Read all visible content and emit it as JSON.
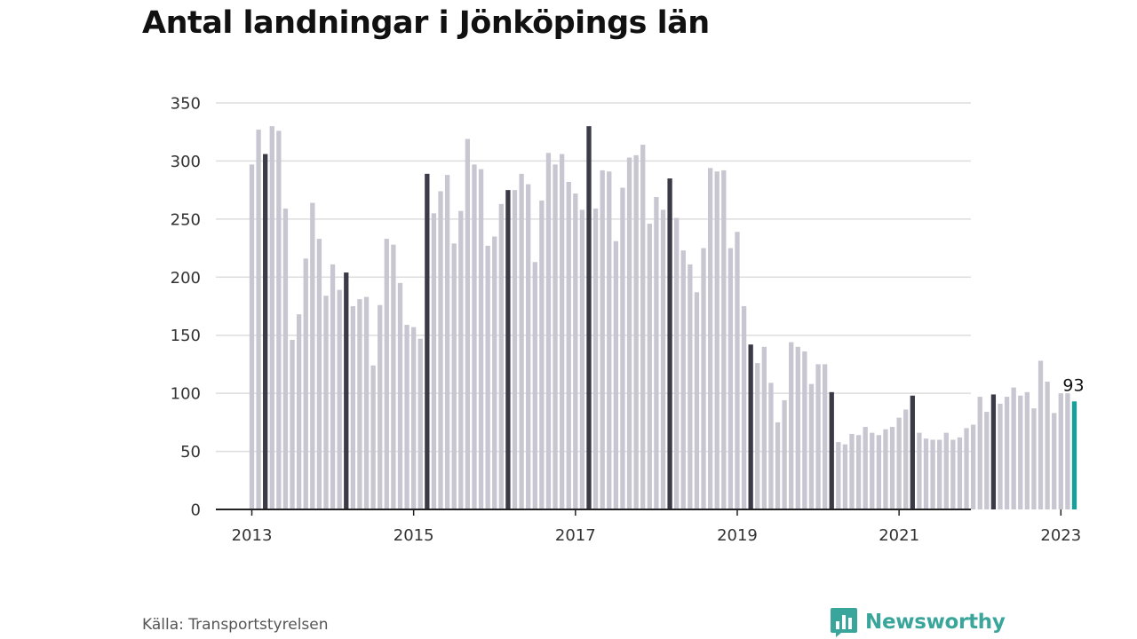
{
  "title": "Antal landningar i Jönköpings län",
  "source": "Källa: Transportstyrelsen",
  "brand": {
    "name": "Newsworthy",
    "icon": "newsworthy-logo-icon",
    "color": "#3aa69b"
  },
  "colors": {
    "bar": "#c7c6d1",
    "bar_highlight": "#3b3a47",
    "bar_latest": "#17a09a",
    "grid": "#dddddd",
    "axis": "#222222"
  },
  "chart_data": {
    "type": "bar",
    "title": "Antal landningar i Jönköpings län",
    "xlabel": "",
    "ylabel": "",
    "ylim": [
      0,
      350
    ],
    "y_ticks": [
      0,
      50,
      100,
      150,
      200,
      250,
      300,
      350
    ],
    "x_tick_labels": [
      "2013",
      "2015",
      "2017",
      "2019",
      "2021",
      "2023"
    ],
    "grid": true,
    "start": "2013-01",
    "frequency": "monthly",
    "highlight": "March of each year (dark bars); latest month in teal",
    "latest_label": "93",
    "values": [
      297,
      327,
      306,
      330,
      326,
      259,
      146,
      168,
      216,
      264,
      233,
      184,
      211,
      189,
      204,
      175,
      181,
      183,
      124,
      176,
      233,
      228,
      195,
      159,
      157,
      147,
      289,
      255,
      274,
      288,
      229,
      257,
      319,
      297,
      293,
      227,
      235,
      263,
      275,
      275,
      289,
      280,
      213,
      266,
      307,
      297,
      306,
      282,
      272,
      258,
      330,
      259,
      292,
      291,
      231,
      277,
      303,
      305,
      314,
      246,
      269,
      258,
      285,
      251,
      223,
      211,
      187,
      225,
      294,
      291,
      292,
      225,
      239,
      175,
      142,
      126,
      140,
      109,
      75,
      94,
      144,
      140,
      136,
      108,
      125,
      125,
      101,
      58,
      56,
      65,
      64,
      71,
      66,
      64,
      69,
      71,
      79,
      86,
      98,
      66,
      61,
      60,
      60,
      66,
      60,
      62,
      70,
      73,
      97,
      84,
      99,
      91,
      97,
      105,
      98,
      101,
      87,
      128,
      110,
      83,
      100,
      100,
      93
    ]
  }
}
